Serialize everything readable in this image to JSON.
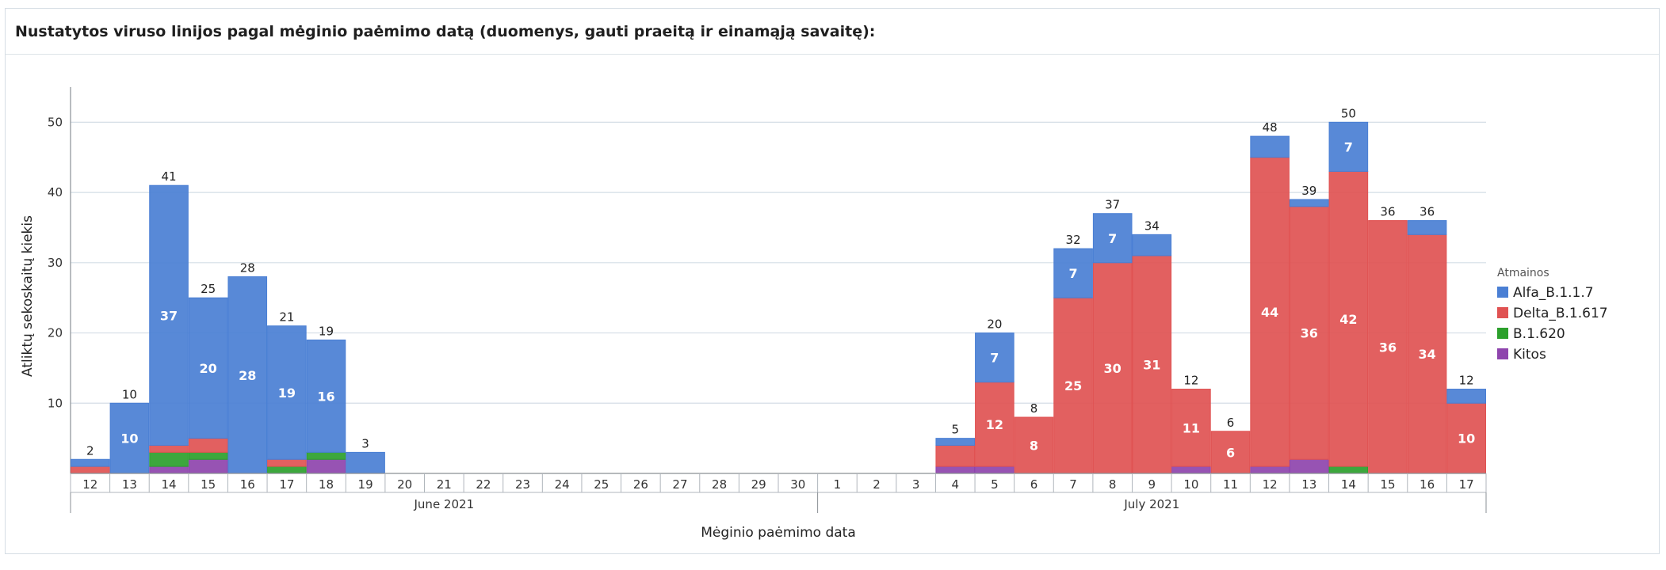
{
  "panel": {
    "title": "Nustatytos viruso linijos pagal mėginio paėmimo datą (duomenys, gauti praeitą ir einamąją savaitę):"
  },
  "chart_data": {
    "type": "bar",
    "stacked": true,
    "title": "Nustatytos viruso linijos pagal mėginio paėmimo datą (duomenys, gauti praeitą ir einamąją savaitę):",
    "xlabel": "Mėginio paėmimo data",
    "ylabel": "Atliktų sekoskaitų kiekis",
    "ylim": [
      0,
      55
    ],
    "yticks": [
      10,
      20,
      30,
      40,
      50
    ],
    "grid": true,
    "categories": [
      "12",
      "13",
      "14",
      "15",
      "16",
      "17",
      "18",
      "19",
      "20",
      "21",
      "22",
      "23",
      "24",
      "25",
      "26",
      "27",
      "28",
      "29",
      "30",
      "1",
      "2",
      "3",
      "4",
      "5",
      "6",
      "7",
      "8",
      "9",
      "10",
      "11",
      "12",
      "13",
      "14",
      "15",
      "16",
      "17"
    ],
    "month_groups": [
      {
        "label": "June 2021",
        "count": 19
      },
      {
        "label": "July 2021",
        "count": 17
      }
    ],
    "series": [
      {
        "name": "Kitos",
        "color": "#8e44ad",
        "values": [
          0,
          0,
          1,
          2,
          0,
          0,
          2,
          0,
          0,
          0,
          0,
          0,
          0,
          0,
          0,
          0,
          0,
          0,
          0,
          0,
          0,
          0,
          1,
          1,
          0,
          0,
          0,
          0,
          1,
          0,
          1,
          2,
          0,
          0,
          0,
          0
        ]
      },
      {
        "name": "B.1.620",
        "color": "#2ca02c",
        "values": [
          0,
          0,
          2,
          1,
          0,
          1,
          1,
          0,
          0,
          0,
          0,
          0,
          0,
          0,
          0,
          0,
          0,
          0,
          0,
          0,
          0,
          0,
          0,
          0,
          0,
          0,
          0,
          0,
          0,
          0,
          0,
          0,
          1,
          0,
          0,
          0
        ]
      },
      {
        "name": "Delta_B.1.617",
        "color": "#e05252",
        "values": [
          1,
          0,
          1,
          2,
          0,
          1,
          0,
          0,
          0,
          0,
          0,
          0,
          0,
          0,
          0,
          0,
          0,
          0,
          0,
          0,
          0,
          0,
          3,
          12,
          8,
          25,
          30,
          31,
          11,
          6,
          44,
          36,
          42,
          36,
          34,
          10
        ]
      },
      {
        "name": "Alfa_B.1.1.7",
        "color": "#4a7fd4",
        "values": [
          1,
          10,
          37,
          20,
          28,
          19,
          16,
          3,
          0,
          0,
          0,
          0,
          0,
          0,
          0,
          0,
          0,
          0,
          0,
          0,
          0,
          0,
          1,
          7,
          0,
          7,
          7,
          3,
          0,
          0,
          3,
          1,
          7,
          0,
          2,
          2
        ]
      }
    ],
    "totals": [
      2,
      10,
      41,
      25,
      28,
      21,
      19,
      3,
      null,
      null,
      null,
      null,
      null,
      null,
      null,
      null,
      null,
      null,
      null,
      null,
      null,
      null,
      5,
      20,
      8,
      32,
      37,
      34,
      12,
      6,
      48,
      39,
      50,
      36,
      36,
      12
    ],
    "inner_labels": [
      {
        "series": "Alfa_B.1.1.7",
        "category_index": 1,
        "value": "10"
      },
      {
        "series": "Alfa_B.1.1.7",
        "category_index": 2,
        "value": "37"
      },
      {
        "series": "Alfa_B.1.1.7",
        "category_index": 3,
        "value": "20"
      },
      {
        "series": "Alfa_B.1.1.7",
        "category_index": 4,
        "value": "28"
      },
      {
        "series": "Alfa_B.1.1.7",
        "category_index": 5,
        "value": "19"
      },
      {
        "series": "Alfa_B.1.1.7",
        "category_index": 6,
        "value": "16"
      },
      {
        "series": "Alfa_B.1.1.7",
        "category_index": 23,
        "value": "7"
      },
      {
        "series": "Alfa_B.1.1.7",
        "category_index": 25,
        "value": "7"
      },
      {
        "series": "Alfa_B.1.1.7",
        "category_index": 26,
        "value": "7"
      },
      {
        "series": "Alfa_B.1.1.7",
        "category_index": 32,
        "value": "7"
      },
      {
        "series": "Delta_B.1.617",
        "category_index": 23,
        "value": "12"
      },
      {
        "series": "Delta_B.1.617",
        "category_index": 24,
        "value": "8"
      },
      {
        "series": "Delta_B.1.617",
        "category_index": 25,
        "value": "25"
      },
      {
        "series": "Delta_B.1.617",
        "category_index": 26,
        "value": "30"
      },
      {
        "series": "Delta_B.1.617",
        "category_index": 27,
        "value": "31"
      },
      {
        "series": "Delta_B.1.617",
        "category_index": 28,
        "value": "11"
      },
      {
        "series": "Delta_B.1.617",
        "category_index": 29,
        "value": "6"
      },
      {
        "series": "Delta_B.1.617",
        "category_index": 30,
        "value": "44"
      },
      {
        "series": "Delta_B.1.617",
        "category_index": 31,
        "value": "36"
      },
      {
        "series": "Delta_B.1.617",
        "category_index": 32,
        "value": "42"
      },
      {
        "series": "Delta_B.1.617",
        "category_index": 33,
        "value": "36"
      },
      {
        "series": "Delta_B.1.617",
        "category_index": 34,
        "value": "34"
      },
      {
        "series": "Delta_B.1.617",
        "category_index": 35,
        "value": "10"
      }
    ],
    "legend": {
      "title": "Atmainos",
      "position": "right",
      "items": [
        {
          "name": "Alfa_B.1.1.7",
          "color": "#4a7fd4"
        },
        {
          "name": "Delta_B.1.617",
          "color": "#e05252"
        },
        {
          "name": "B.1.620",
          "color": "#2ca02c"
        },
        {
          "name": "Kitos",
          "color": "#8e44ad"
        }
      ]
    }
  }
}
